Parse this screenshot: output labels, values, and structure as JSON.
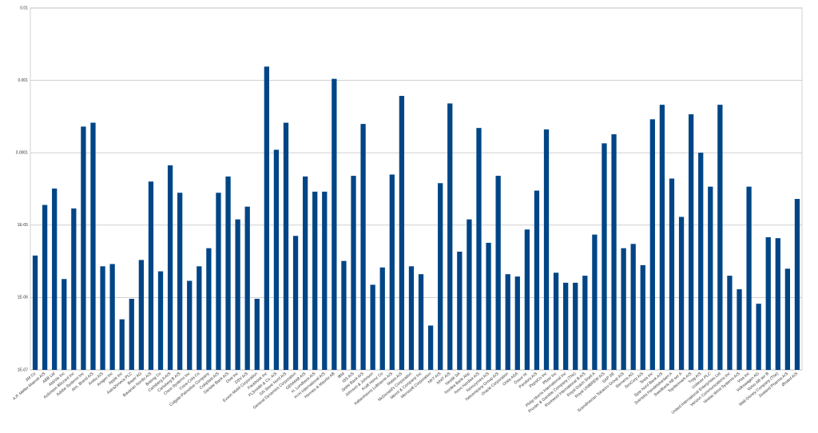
{
  "chart_data": {
    "type": "bar",
    "log_scale": true,
    "grid": true,
    "color": "#004586",
    "categories": [
      "3M Co",
      "A.P. Møller-Maersk A/S",
      "ABB Ltd",
      "AbbVie Inc",
      "Activision Blizzard Inc",
      "Adobe Systems Inc",
      "Alm. Brand A/S",
      "Ambu A/S",
      "Amgen Inc",
      "Apple Inc",
      "AstraZeneca PLC",
      "Bayer AG",
      "Bavarian Nordic A/S",
      "Boeing Co",
      "Carlsberg A A/S",
      "Carlsberg B A/S",
      "Cisco Systems Inc",
      "Coca-Cola Co",
      "Colgate-Palmolive Company",
      "Coloplast A/S",
      "Danske Bank A/S",
      "Dow Inc",
      "DSV A/S",
      "Exxon Mobil Corporation",
      "Facebook Inc",
      "FLSmidth & Co. A/S",
      "GN Store Nord A/S",
      "General Dynamics Corporation",
      "GENMAB A/S",
      "H. Lundbeck A/S",
      "H+H International A/S",
      "Hennes & Mauritz AB",
      "IBM",
      "ISS A/S",
      "Jyske Bank A/S",
      "Johnson & Johnson",
      "Kraft Heinz Co",
      "Københavns Lufthavne A/S",
      "Matas A/S",
      "McDonald's Corporation",
      "Merck & Company Inc",
      "Microsoft Corporation",
      "NKT A/S",
      "NNIT A/S",
      "Nestlé SA",
      "Nordea Bank Abp",
      "Novo Nordisk A/S",
      "Novozymes A/S",
      "Netcompany Group A/S",
      "Oracle Corporation",
      "Orkla ASA",
      "Össur hf.",
      "Pandora A/S",
      "PepsiCo Inc",
      "Pfizer Inc",
      "Philip Morris International Inc",
      "Procter & Gamble Company (The)",
      "Rockwool International B A/S",
      "Royal Dutch Shell A",
      "Royal UNIBREW A/S",
      "SAP SE",
      "Scandinavian Tobacco Group A/S",
      "Siemens AG",
      "SimCorp A/S",
      "Tesla Inc",
      "Spar Nord Bank A/S",
      "Svenska Handelsbanken A",
      "Swedbank AB ser A",
      "Topdanmark A/S",
      "Tryg A/S",
      "Unilever PLC",
      "United International Enterprises Ltd",
      "Verizon Communications Inc",
      "Vestas Wind Systems A/S",
      "Visa Inc",
      "Volkswagen AG",
      "Volvo AB ser B",
      "Walt Disney Company (The)",
      "Zealand Pharma A/S",
      "Ørsted A/S"
    ],
    "values": [
      3.8e-06,
      1.9e-05,
      3.2e-05,
      1.8e-06,
      1.7e-05,
      0.00023,
      0.00026,
      2.7e-06,
      2.9e-06,
      5e-07,
      9.6e-07,
      3.3e-06,
      4e-05,
      2.3e-06,
      6.7e-05,
      2.8e-05,
      1.7e-06,
      2.7e-06,
      4.8e-06,
      2.8e-05,
      4.7e-05,
      1.2e-05,
      1.8e-05,
      9.6e-07,
      0.00155,
      0.00011,
      0.00026,
      7.1e-06,
      4.7e-05,
      2.9e-05,
      2.9e-05,
      0.00105,
      3.2e-06,
      4.8e-05,
      0.00025,
      1.5e-06,
      2.6e-06,
      5e-05,
      0.00061,
      2.7e-06,
      2.1e-06,
      4.1e-07,
      3.8e-05,
      0.00048,
      4.3e-06,
      1.2e-05,
      0.00022,
      5.7e-06,
      4.8e-05,
      2.1e-06,
      1.95e-06,
      8.7e-06,
      3e-05,
      0.00021,
      2.2e-06,
      1.6e-06,
      1.6e-06,
      2e-06,
      7.4e-06,
      0.000135,
      0.00018,
      4.8e-06,
      5.5e-06,
      2.8e-06,
      0.00029,
      0.00046,
      4.4e-05,
      1.3e-05,
      0.00034,
      0.0001,
      3.4e-05,
      0.00046,
      2e-06,
      1.3e-06,
      3.4e-05,
      8.2e-07,
      6.8e-06,
      6.6e-06,
      2.5e-06,
      2.3e-05
    ],
    "ylim": [
      1e-07,
      0.01
    ],
    "yticks": [
      {
        "value": 1e-07,
        "label": "1E-07"
      },
      {
        "value": 1e-06,
        "label": "1E-06"
      },
      {
        "value": 1e-05,
        "label": "1E-05"
      },
      0.0001,
      0.001,
      0.01
    ]
  }
}
